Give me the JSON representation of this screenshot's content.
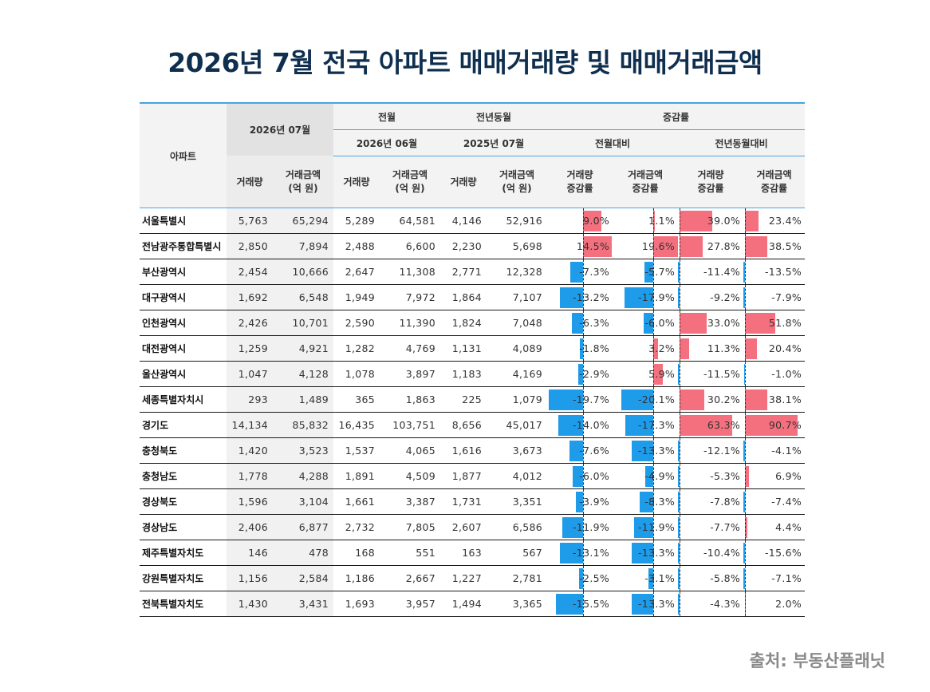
{
  "title": "2026년 7월 전국 아파트 매매거래량 및 매매거래금액",
  "source": "출처: 부동산플래닛",
  "colors": {
    "negative": "#1e9be9",
    "positive": "#f4707f",
    "header_accent": "#4aa3df",
    "title": "#0f2f4f"
  },
  "chart_data": {
    "type": "table",
    "headers": {
      "region": "아파트",
      "current": "2026년 07월",
      "prev_month_group": "전월",
      "prev_month": "2026년 06월",
      "prev_year_group": "전년동월",
      "prev_year": "2025년 07월",
      "change_group": "증감률",
      "mom": "전월대비",
      "yoy": "전년동월대비",
      "vol": "거래량",
      "amt": "거래금액",
      "amt_unit": "(억 원)",
      "vol_chg": "거래량",
      "amt_chg": "거래금액",
      "chg_suffix": "증감률"
    },
    "rows": [
      {
        "region": "서울특별시",
        "v_cur": "5,763",
        "a_cur": "65,294",
        "v_pm": "5,289",
        "a_pm": "64,581",
        "v_py": "4,146",
        "a_py": "52,916",
        "vol_mom": 9.0,
        "amt_mom": 1.1,
        "vol_yoy": 39.0,
        "amt_yoy": 23.4
      },
      {
        "region": "전남광주통합특별시",
        "v_cur": "2,850",
        "a_cur": "7,894",
        "v_pm": "2,488",
        "a_pm": "6,600",
        "v_py": "2,230",
        "a_py": "5,698",
        "vol_mom": 14.5,
        "amt_mom": 19.6,
        "vol_yoy": 27.8,
        "amt_yoy": 38.5
      },
      {
        "region": "부산광역시",
        "v_cur": "2,454",
        "a_cur": "10,666",
        "v_pm": "2,647",
        "a_pm": "11,308",
        "v_py": "2,771",
        "a_py": "12,328",
        "vol_mom": -7.3,
        "amt_mom": -5.7,
        "vol_yoy": -11.4,
        "amt_yoy": -13.5
      },
      {
        "region": "대구광역시",
        "v_cur": "1,692",
        "a_cur": "6,548",
        "v_pm": "1,949",
        "a_pm": "7,972",
        "v_py": "1,864",
        "a_py": "7,107",
        "vol_mom": -13.2,
        "amt_mom": -17.9,
        "vol_yoy": -9.2,
        "amt_yoy": -7.9
      },
      {
        "region": "인천광역시",
        "v_cur": "2,426",
        "a_cur": "10,701",
        "v_pm": "2,590",
        "a_pm": "11,390",
        "v_py": "1,824",
        "a_py": "7,048",
        "vol_mom": -6.3,
        "amt_mom": -6.0,
        "vol_yoy": 33.0,
        "amt_yoy": 51.8
      },
      {
        "region": "대전광역시",
        "v_cur": "1,259",
        "a_cur": "4,921",
        "v_pm": "1,282",
        "a_pm": "4,769",
        "v_py": "1,131",
        "a_py": "4,089",
        "vol_mom": -1.8,
        "amt_mom": 3.2,
        "vol_yoy": 11.3,
        "amt_yoy": 20.4
      },
      {
        "region": "울산광역시",
        "v_cur": "1,047",
        "a_cur": "4,128",
        "v_pm": "1,078",
        "a_pm": "3,897",
        "v_py": "1,183",
        "a_py": "4,169",
        "vol_mom": -2.9,
        "amt_mom": 5.9,
        "vol_yoy": -11.5,
        "amt_yoy": -1.0
      },
      {
        "region": "세종특별자치시",
        "v_cur": "293",
        "a_cur": "1,489",
        "v_pm": "365",
        "a_pm": "1,863",
        "v_py": "225",
        "a_py": "1,079",
        "vol_mom": -19.7,
        "amt_mom": -20.1,
        "vol_yoy": 30.2,
        "amt_yoy": 38.1
      },
      {
        "region": "경기도",
        "v_cur": "14,134",
        "a_cur": "85,832",
        "v_pm": "16,435",
        "a_pm": "103,751",
        "v_py": "8,656",
        "a_py": "45,017",
        "vol_mom": -14.0,
        "amt_mom": -17.3,
        "vol_yoy": 63.3,
        "amt_yoy": 90.7
      },
      {
        "region": "충청북도",
        "v_cur": "1,420",
        "a_cur": "3,523",
        "v_pm": "1,537",
        "a_pm": "4,065",
        "v_py": "1,616",
        "a_py": "3,673",
        "vol_mom": -7.6,
        "amt_mom": -13.3,
        "vol_yoy": -12.1,
        "amt_yoy": -4.1
      },
      {
        "region": "충청남도",
        "v_cur": "1,778",
        "a_cur": "4,288",
        "v_pm": "1,891",
        "a_pm": "4,509",
        "v_py": "1,877",
        "a_py": "4,012",
        "vol_mom": -6.0,
        "amt_mom": -4.9,
        "vol_yoy": -5.3,
        "amt_yoy": 6.9
      },
      {
        "region": "경상북도",
        "v_cur": "1,596",
        "a_cur": "3,104",
        "v_pm": "1,661",
        "a_pm": "3,387",
        "v_py": "1,731",
        "a_py": "3,351",
        "vol_mom": -3.9,
        "amt_mom": -8.3,
        "vol_yoy": -7.8,
        "amt_yoy": -7.4
      },
      {
        "region": "경상남도",
        "v_cur": "2,406",
        "a_cur": "6,877",
        "v_pm": "2,732",
        "a_pm": "7,805",
        "v_py": "2,607",
        "a_py": "6,586",
        "vol_mom": -11.9,
        "amt_mom": -11.9,
        "vol_yoy": -7.7,
        "amt_yoy": 4.4
      },
      {
        "region": "제주특별자치도",
        "v_cur": "146",
        "a_cur": "478",
        "v_pm": "168",
        "a_pm": "551",
        "v_py": "163",
        "a_py": "567",
        "vol_mom": -13.1,
        "amt_mom": -13.3,
        "vol_yoy": -10.4,
        "amt_yoy": -15.6
      },
      {
        "region": "강원특별자치도",
        "v_cur": "1,156",
        "a_cur": "2,584",
        "v_pm": "1,186",
        "a_pm": "2,667",
        "v_py": "1,227",
        "a_py": "2,781",
        "vol_mom": -2.5,
        "amt_mom": -3.1,
        "vol_yoy": -5.8,
        "amt_yoy": -7.1
      },
      {
        "region": "전북특별자치도",
        "v_cur": "1,430",
        "a_cur": "3,431",
        "v_pm": "1,693",
        "a_pm": "3,957",
        "v_py": "1,494",
        "a_py": "3,365",
        "vol_mom": -15.5,
        "amt_mom": -13.3,
        "vol_yoy": -4.3,
        "amt_yoy": 2.0
      }
    ]
  }
}
